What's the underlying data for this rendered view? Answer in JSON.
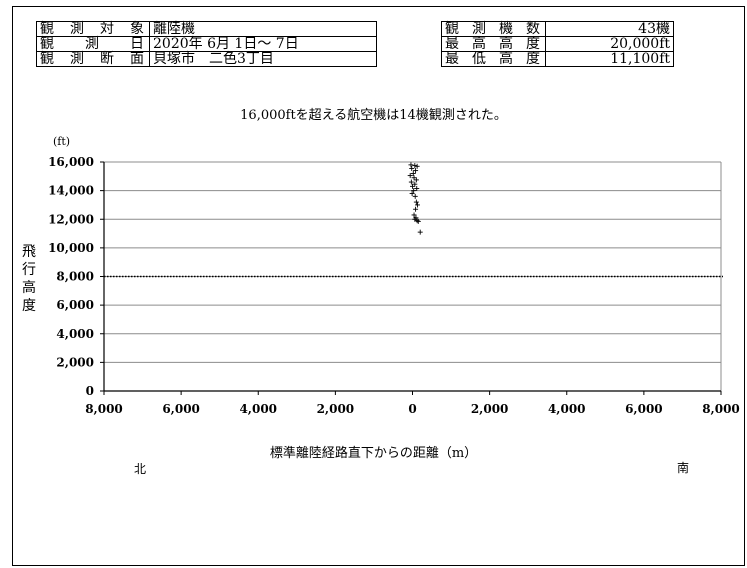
{
  "info_left": {
    "rows": [
      {
        "label": "観測対象",
        "value": "離陸機"
      },
      {
        "label": "観測日",
        "value": "2020年 6月 1日～ 7日"
      },
      {
        "label": "観測断面",
        "value": "貝塚市　二色3丁目"
      }
    ]
  },
  "info_right": {
    "rows": [
      {
        "label": "観測機数",
        "value": "43機"
      },
      {
        "label": "最高高度",
        "value": "20,000ft"
      },
      {
        "label": "最低高度",
        "value": "11,100ft"
      }
    ]
  },
  "note": "16,000ftを超える航空機は14機観測された。",
  "direction": {
    "north": "北",
    "south": "南"
  },
  "chart_data": {
    "type": "scatter",
    "title": "",
    "ylabel": "飛行高度",
    "yunit": "(ft)",
    "xlabel": "標準離陸経路直下からの距離（m）",
    "xlim": [
      -8000,
      8000
    ],
    "ylim": [
      0,
      16000
    ],
    "x_ticks": [
      -8000,
      -6000,
      -4000,
      -2000,
      0,
      2000,
      4000,
      6000,
      8000
    ],
    "x_tick_labels": [
      "8,000",
      "6,000",
      "4,000",
      "2,000",
      "0",
      "2,000",
      "4,000",
      "6,000",
      "8,000"
    ],
    "y_ticks": [
      0,
      2000,
      4000,
      6000,
      8000,
      10000,
      12000,
      14000,
      16000
    ],
    "y_tick_labels": [
      "0",
      "2,000",
      "4,000",
      "6,000",
      "8,000",
      "10,000",
      "12,000",
      "14,000",
      "16,000"
    ],
    "grid": true,
    "reference_line": {
      "y": 8000,
      "style": "dotted"
    },
    "points": [
      {
        "x": -40,
        "y": 15800
      },
      {
        "x": 60,
        "y": 15750
      },
      {
        "x": 120,
        "y": 15700
      },
      {
        "x": -20,
        "y": 15550
      },
      {
        "x": 80,
        "y": 15400
      },
      {
        "x": 20,
        "y": 15200
      },
      {
        "x": -60,
        "y": 15050
      },
      {
        "x": 40,
        "y": 14900
      },
      {
        "x": 100,
        "y": 14750
      },
      {
        "x": -30,
        "y": 14600
      },
      {
        "x": 60,
        "y": 14450
      },
      {
        "x": 0,
        "y": 14300
      },
      {
        "x": 110,
        "y": 14150
      },
      {
        "x": 30,
        "y": 14000
      },
      {
        "x": -10,
        "y": 13800
      },
      {
        "x": 70,
        "y": 13600
      },
      {
        "x": 100,
        "y": 13200
      },
      {
        "x": 130,
        "y": 13000
      },
      {
        "x": 80,
        "y": 12700
      },
      {
        "x": 40,
        "y": 12300
      },
      {
        "x": 90,
        "y": 12100
      },
      {
        "x": 60,
        "y": 12000
      },
      {
        "x": 120,
        "y": 11900
      },
      {
        "x": 150,
        "y": 11850
      },
      {
        "x": 200,
        "y": 11100
      }
    ]
  }
}
